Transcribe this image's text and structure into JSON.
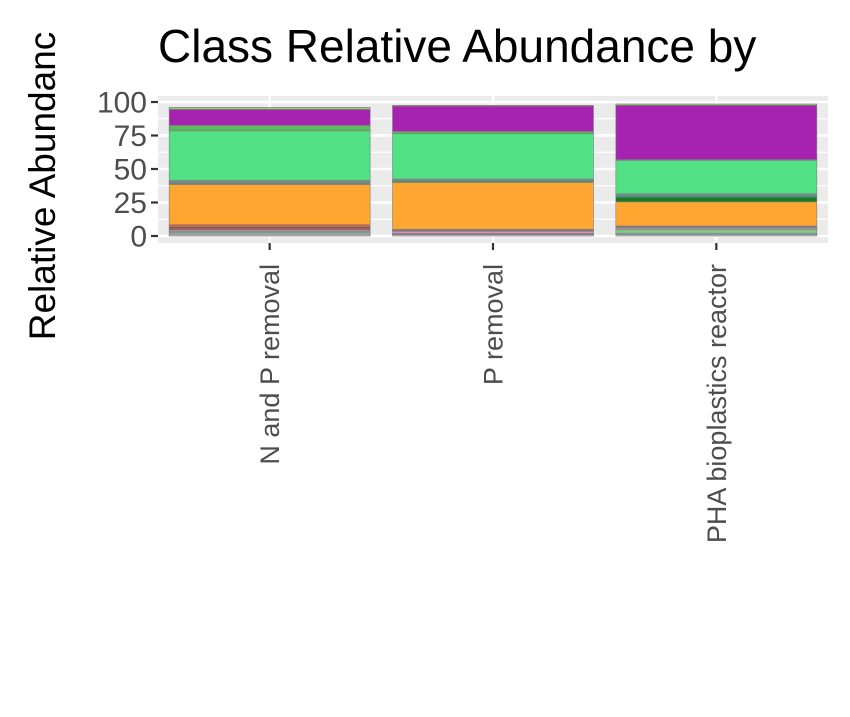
{
  "chart_data": {
    "type": "bar",
    "stacked": true,
    "title": "Class Relative Abundance by",
    "xlabel": "",
    "ylabel": "Relative Abundanc",
    "ylim": [
      0,
      100
    ],
    "yticks": [
      0,
      25,
      50,
      75,
      100
    ],
    "grid": true,
    "categories": [
      "N and P removal",
      "P removal",
      "PHA bioplastics reactor"
    ],
    "series": [
      {
        "color": "#b3b3b3",
        "values": [
          1.5,
          1.0,
          1.0
        ]
      },
      {
        "color": "#8fbcd4",
        "values": [
          1.0,
          0.5,
          1.0
        ]
      },
      {
        "color": "#7fc97f",
        "values": [
          1.0,
          0.5,
          3.0
        ]
      },
      {
        "color": "#e78ac3",
        "values": [
          1.0,
          1.5,
          1.0
        ]
      },
      {
        "color": "#c2456b",
        "values": [
          1.0,
          0.5,
          0.5
        ]
      },
      {
        "color": "#a0522d",
        "values": [
          1.5,
          0.5,
          0.5
        ]
      },
      {
        "color": "#d6604d",
        "values": [
          1.5,
          0.5,
          0.5
        ]
      },
      {
        "color": "#ffa630",
        "values": [
          30.0,
          35.0,
          18.0
        ]
      },
      {
        "color": "#1b7a1b",
        "values": [
          0.5,
          0.5,
          3.5
        ]
      },
      {
        "color": "#2a9d8f",
        "values": [
          1.0,
          1.0,
          1.5
        ]
      },
      {
        "color": "#8a8a8a",
        "values": [
          1.5,
          1.0,
          1.0
        ]
      },
      {
        "color": "#52e085",
        "values": [
          37.0,
          34.0,
          25.0
        ]
      },
      {
        "color": "#5bb85b",
        "values": [
          4.0,
          1.5,
          0.5
        ]
      },
      {
        "color": "#a623b0",
        "values": [
          12.0,
          19.0,
          40.5
        ]
      },
      {
        "color": "#8fd16a",
        "values": [
          1.5,
          0.5,
          1.0
        ]
      }
    ]
  }
}
